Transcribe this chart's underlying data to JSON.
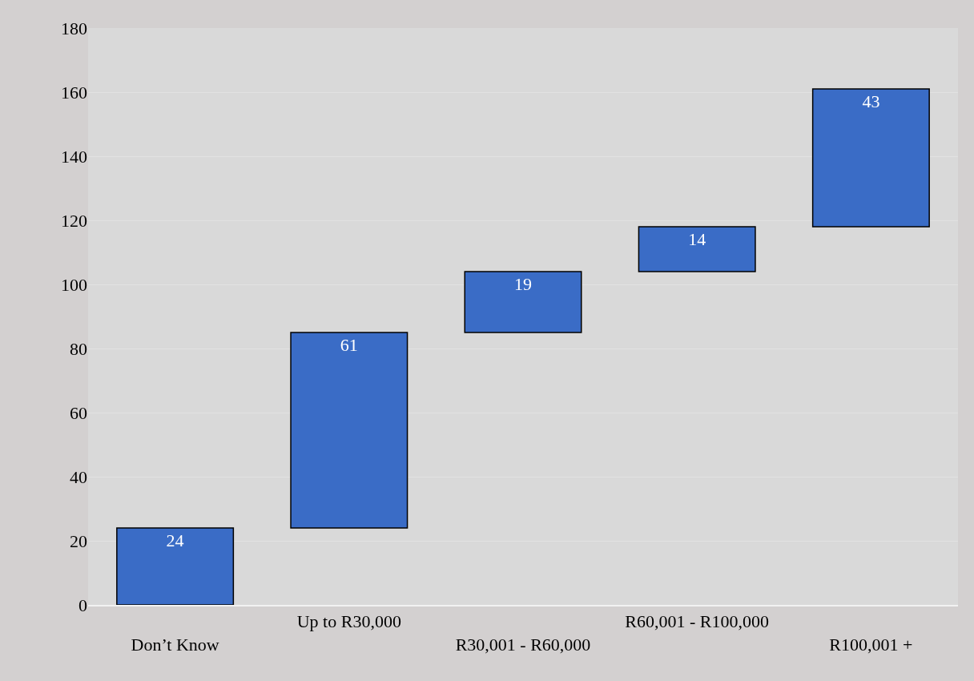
{
  "chart_data": {
    "type": "bar",
    "categories": [
      "Don’t Know",
      "Up to R30,000",
      "R30,001 - R60,000",
      "R60,001 - R100,000",
      "R100,001 +"
    ],
    "values": [
      24,
      61,
      19,
      14,
      43
    ],
    "base": [
      0,
      24,
      85,
      104,
      118
    ],
    "color": "#3a6cc6",
    "data_labels": true,
    "ylim": [
      0,
      180
    ],
    "yticks": [
      0,
      20,
      40,
      60,
      80,
      100,
      120,
      140,
      160,
      180
    ],
    "grid": "y"
  }
}
